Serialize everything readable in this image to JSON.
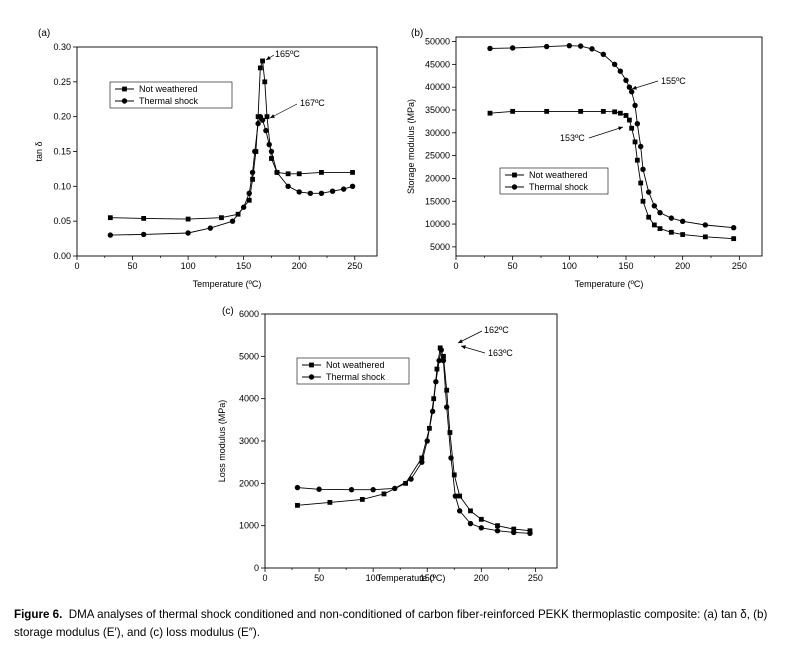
{
  "caption": {
    "lead": "Figure 6.",
    "text": "DMA analyses of thermal shock conditioned and non-conditioned of carbon fiber-reinforced PEKK thermoplastic composite: (a) tan δ, (b) storage modulus (E′), and (c) loss modulus (E″)."
  },
  "chart_data": [
    {
      "id": "a",
      "type": "line",
      "panel_label": "(a)",
      "xlabel": "Temperature (ºC)",
      "ylabel": "tan δ",
      "xlim": [
        0,
        270
      ],
      "ylim": [
        0,
        0.3
      ],
      "xticks": [
        0,
        50,
        100,
        150,
        200,
        250
      ],
      "yticks": [
        0.0,
        0.05,
        0.1,
        0.15,
        0.2,
        0.25,
        0.3
      ],
      "ytick_decimals": 2,
      "legend": {
        "position": "upper-left",
        "entries": [
          "Not weathered",
          "Thermal shock"
        ]
      },
      "annotations": [
        {
          "text": "165ºC",
          "x": 165,
          "y": 0.28
        },
        {
          "text": "167ºC",
          "x": 167,
          "y": 0.2
        }
      ],
      "series": [
        {
          "name": "Not weathered",
          "marker": "square",
          "x": [
            30,
            60,
            100,
            130,
            145,
            155,
            158,
            161,
            163,
            165,
            167,
            169,
            171,
            175,
            180,
            190,
            200,
            220,
            248
          ],
          "y": [
            0.055,
            0.054,
            0.053,
            0.055,
            0.06,
            0.08,
            0.11,
            0.15,
            0.2,
            0.27,
            0.28,
            0.25,
            0.2,
            0.14,
            0.12,
            0.118,
            0.118,
            0.12,
            0.12
          ]
        },
        {
          "name": "Thermal shock",
          "marker": "circle",
          "x": [
            30,
            60,
            100,
            120,
            140,
            150,
            155,
            158,
            160,
            163,
            165,
            167,
            170,
            173,
            175,
            180,
            190,
            200,
            210,
            220,
            230,
            240,
            248
          ],
          "y": [
            0.03,
            0.031,
            0.033,
            0.04,
            0.05,
            0.07,
            0.09,
            0.12,
            0.15,
            0.19,
            0.2,
            0.195,
            0.18,
            0.16,
            0.15,
            0.12,
            0.1,
            0.092,
            0.09,
            0.09,
            0.093,
            0.096,
            0.1
          ]
        }
      ]
    },
    {
      "id": "b",
      "type": "line",
      "panel_label": "(b)",
      "xlabel": "Temperature (ºC)",
      "ylabel": "Storage modulus (MPa)",
      "xlim": [
        0,
        270
      ],
      "ylim": [
        3000,
        51000
      ],
      "xticks": [
        0,
        50,
        100,
        150,
        200,
        250
      ],
      "yticks": [
        5000,
        10000,
        15000,
        20000,
        25000,
        30000,
        35000,
        40000,
        45000,
        50000
      ],
      "ytick_decimals": 0,
      "legend": {
        "position": "lower-left",
        "entries": [
          "Not weathered",
          "Thermal shock"
        ]
      },
      "annotations": [
        {
          "text": "155ºC",
          "x": 155,
          "y": 39000
        },
        {
          "text": "153ºC",
          "x": 153,
          "y": 33500
        }
      ],
      "series": [
        {
          "name": "Not weathered",
          "marker": "square",
          "x": [
            30,
            50,
            80,
            110,
            130,
            140,
            145,
            150,
            153,
            155,
            158,
            160,
            163,
            165,
            170,
            175,
            180,
            190,
            200,
            220,
            245
          ],
          "y": [
            34300,
            34700,
            34700,
            34700,
            34700,
            34600,
            34300,
            33800,
            32800,
            31000,
            28000,
            24000,
            19000,
            15000,
            11500,
            9800,
            9000,
            8200,
            7700,
            7200,
            6800
          ]
        },
        {
          "name": "Thermal shock",
          "marker": "circle",
          "x": [
            30,
            50,
            80,
            100,
            110,
            120,
            130,
            140,
            145,
            150,
            153,
            155,
            158,
            160,
            163,
            165,
            170,
            175,
            180,
            190,
            200,
            220,
            245
          ],
          "y": [
            48500,
            48600,
            48900,
            49100,
            49000,
            48400,
            47200,
            45000,
            43500,
            41500,
            40000,
            39000,
            36000,
            32000,
            27000,
            22000,
            17000,
            14000,
            12500,
            11300,
            10600,
            9800,
            9200
          ]
        }
      ]
    },
    {
      "id": "c",
      "type": "line",
      "panel_label": "(c)",
      "xlabel": "Temperature (ºC)",
      "ylabel": "Loss modulus (MPa)",
      "xlim": [
        0,
        270
      ],
      "ylim": [
        0,
        6000
      ],
      "xticks": [
        0,
        50,
        100,
        150,
        200,
        250
      ],
      "yticks": [
        0,
        1000,
        2000,
        3000,
        4000,
        5000,
        6000
      ],
      "ytick_decimals": 0,
      "legend": {
        "position": "upper-left",
        "entries": [
          "Not weathered",
          "Thermal shock"
        ]
      },
      "annotations": [
        {
          "text": "162ºC",
          "x": 162,
          "y": 5200
        },
        {
          "text": "163ºC",
          "x": 163,
          "y": 5100
        }
      ],
      "series": [
        {
          "name": "Not weathered",
          "marker": "square",
          "x": [
            30,
            60,
            90,
            110,
            130,
            145,
            152,
            156,
            159,
            162,
            165,
            168,
            171,
            175,
            180,
            190,
            200,
            215,
            230,
            245
          ],
          "y": [
            1480,
            1550,
            1620,
            1750,
            2000,
            2600,
            3300,
            4000,
            4700,
            5200,
            5000,
            4200,
            3200,
            2200,
            1700,
            1350,
            1150,
            1000,
            920,
            880
          ]
        },
        {
          "name": "Thermal shock",
          "marker": "circle",
          "x": [
            30,
            50,
            80,
            100,
            120,
            135,
            145,
            150,
            155,
            158,
            161,
            163,
            165,
            168,
            172,
            176,
            180,
            190,
            200,
            215,
            230,
            245
          ],
          "y": [
            1900,
            1860,
            1850,
            1850,
            1880,
            2100,
            2500,
            3000,
            3700,
            4400,
            4900,
            5150,
            4900,
            3800,
            2600,
            1700,
            1350,
            1050,
            950,
            880,
            840,
            820
          ]
        }
      ]
    }
  ]
}
